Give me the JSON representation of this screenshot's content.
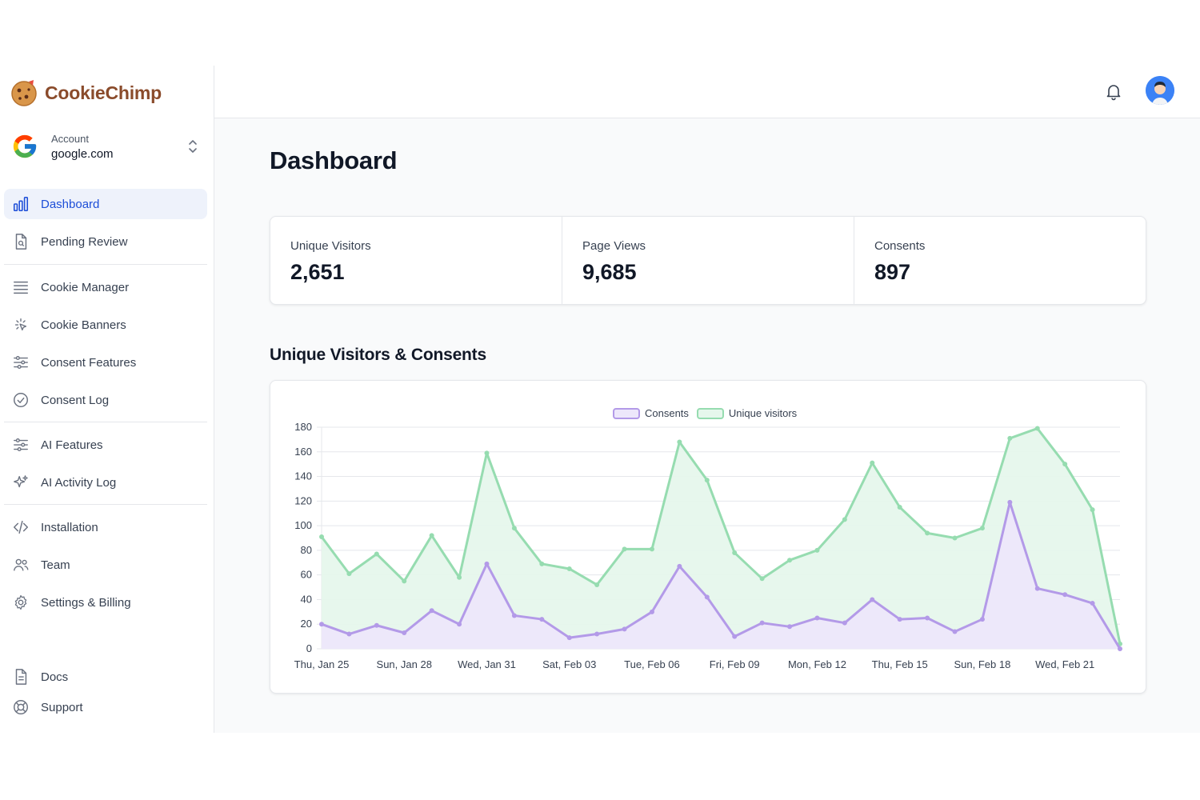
{
  "brand": {
    "name": "CookieChimp"
  },
  "account": {
    "label": "Account",
    "value": "google.com"
  },
  "nav": {
    "group1": [
      {
        "label": "Dashboard",
        "icon": "bar-chart-icon",
        "active": true
      },
      {
        "label": "Pending Review",
        "icon": "document-search-icon"
      }
    ],
    "group2": [
      {
        "label": "Cookie Manager",
        "icon": "list-icon"
      },
      {
        "label": "Cookie Banners",
        "icon": "cursor-click-icon"
      },
      {
        "label": "Consent Features",
        "icon": "sliders-icon"
      },
      {
        "label": "Consent Log",
        "icon": "check-circle-icon"
      }
    ],
    "group3": [
      {
        "label": "AI Features",
        "icon": "sliders-icon"
      },
      {
        "label": "AI Activity Log",
        "icon": "sparkles-icon"
      }
    ],
    "group4": [
      {
        "label": "Installation",
        "icon": "code-icon"
      },
      {
        "label": "Team",
        "icon": "users-icon"
      },
      {
        "label": "Settings & Billing",
        "icon": "gear-icon"
      }
    ],
    "bottom": [
      {
        "label": "Docs",
        "icon": "document-icon"
      },
      {
        "label": "Support",
        "icon": "lifebuoy-icon"
      }
    ]
  },
  "page": {
    "title": "Dashboard",
    "chart_section_title": "Unique Visitors & Consents"
  },
  "stats": [
    {
      "label": "Unique Visitors",
      "value": "2,651"
    },
    {
      "label": "Page Views",
      "value": "9,685"
    },
    {
      "label": "Consents",
      "value": "897"
    }
  ],
  "colors": {
    "accent": "#1d4ed8",
    "brand": "#8a4b2b",
    "consents_line": "#b39ae8",
    "consents_fill": "#ede7fb",
    "visitors_line": "#96dcb0",
    "visitors_fill": "#e6f7ec"
  },
  "chart_data": {
    "type": "area",
    "legend": [
      "Consents",
      "Unique visitors"
    ],
    "x_tick_labels": [
      "Thu, Jan 25",
      "Sun, Jan 28",
      "Wed, Jan 31",
      "Sat, Feb 03",
      "Tue, Feb 06",
      "Fri, Feb 09",
      "Mon, Feb 12",
      "Thu, Feb 15",
      "Sun, Feb 18",
      "Wed, Feb 21"
    ],
    "y_ticks": [
      0,
      20,
      40,
      60,
      80,
      100,
      120,
      140,
      160,
      180
    ],
    "ylim": [
      0,
      180
    ],
    "grid": true,
    "legend_position": "top-center",
    "series": [
      {
        "name": "Consents",
        "values": [
          20,
          12,
          19,
          13,
          31,
          20,
          69,
          27,
          24,
          9,
          12,
          16,
          30,
          67,
          42,
          10,
          21,
          18,
          25,
          21,
          40,
          24,
          25,
          14,
          24,
          119,
          49,
          44,
          37,
          0
        ]
      },
      {
        "name": "Unique visitors",
        "values": [
          91,
          61,
          77,
          55,
          92,
          58,
          159,
          98,
          69,
          65,
          52,
          81,
          81,
          168,
          137,
          78,
          57,
          72,
          80,
          105,
          151,
          115,
          94,
          90,
          98,
          171,
          179,
          150,
          113,
          4
        ]
      }
    ]
  }
}
